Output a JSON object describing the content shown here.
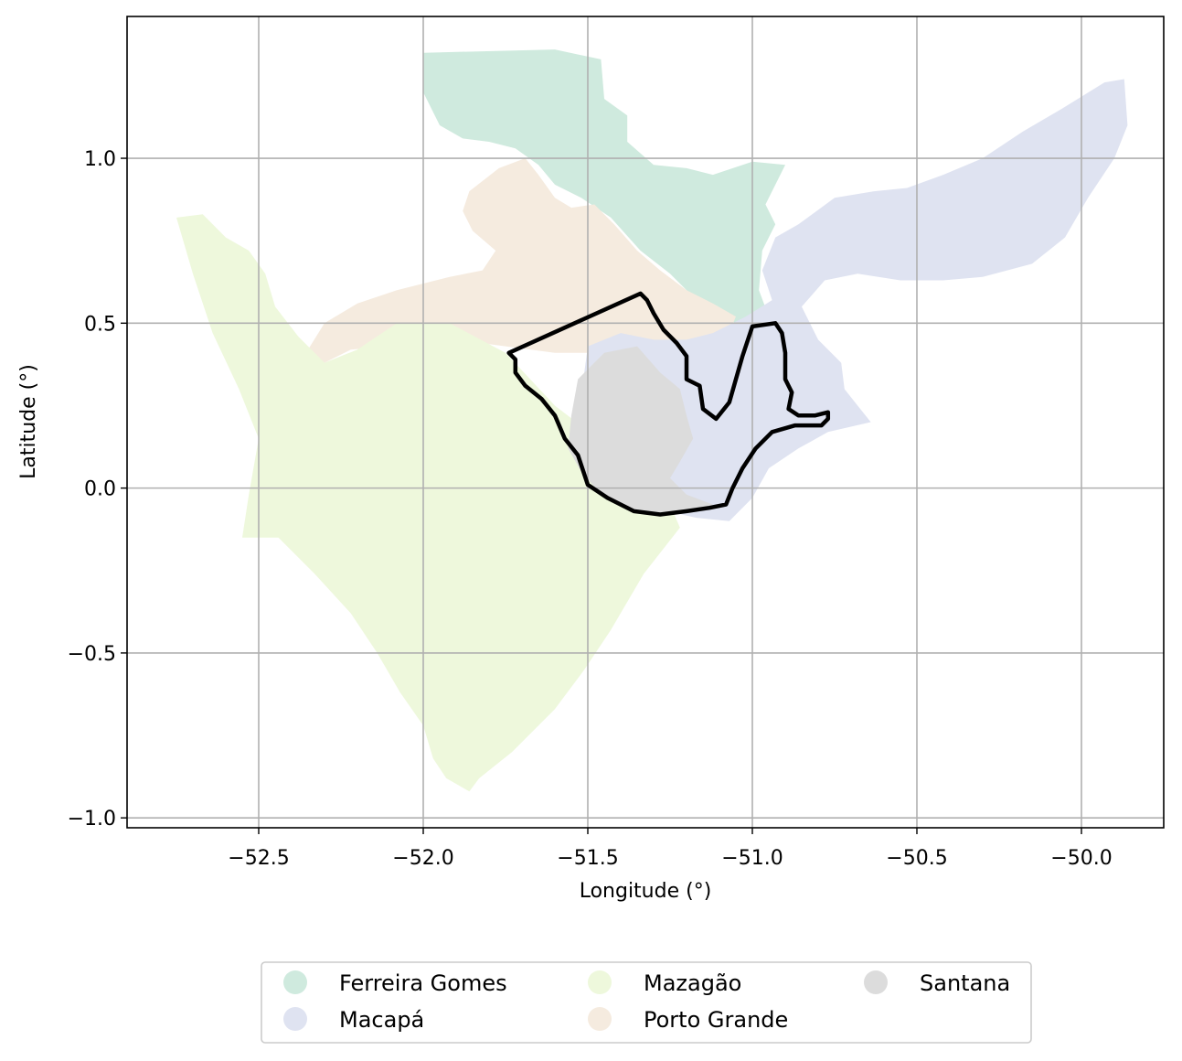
{
  "chart_data": {
    "type": "map",
    "xlabel": "Longitude (°)",
    "ylabel": "Latitude (°)",
    "xlim": [
      -52.9,
      -49.75
    ],
    "ylim": [
      -1.03,
      1.43
    ],
    "x_ticks": [
      -52.5,
      -52.0,
      -51.5,
      -51.0,
      -50.5,
      -50.0
    ],
    "x_tick_labels": [
      "−52.5",
      "−52.0",
      "−51.5",
      "−51.0",
      "−50.5",
      "−50.0"
    ],
    "y_ticks": [
      -1.0,
      -0.5,
      0.0,
      0.5,
      1.0
    ],
    "y_tick_labels": [
      "−1.0",
      "−0.5",
      "0.0",
      "0.5",
      "1.0"
    ],
    "grid": true,
    "legend_position": "bottom-center",
    "legend_columns": 3,
    "regions": [
      {
        "name": "Ferreira Gomes",
        "color": "#cfeade",
        "coords": [
          [
            -52.0,
            1.32
          ],
          [
            -51.6,
            1.33
          ],
          [
            -51.46,
            1.3
          ],
          [
            -51.45,
            1.18
          ],
          [
            -51.38,
            1.13
          ],
          [
            -51.38,
            1.05
          ],
          [
            -51.3,
            0.98
          ],
          [
            -51.2,
            0.97
          ],
          [
            -51.12,
            0.95
          ],
          [
            -51.0,
            0.99
          ],
          [
            -50.9,
            0.98
          ],
          [
            -50.96,
            0.86
          ],
          [
            -50.93,
            0.8
          ],
          [
            -50.97,
            0.72
          ],
          [
            -50.98,
            0.6
          ],
          [
            -50.95,
            0.52
          ],
          [
            -51.05,
            0.5
          ],
          [
            -51.15,
            0.55
          ],
          [
            -51.25,
            0.65
          ],
          [
            -51.34,
            0.72
          ],
          [
            -51.43,
            0.82
          ],
          [
            -51.52,
            0.88
          ],
          [
            -51.6,
            0.92
          ],
          [
            -51.65,
            0.98
          ],
          [
            -51.72,
            1.03
          ],
          [
            -51.8,
            1.05
          ],
          [
            -51.88,
            1.06
          ],
          [
            -51.95,
            1.1
          ],
          [
            -52.0,
            1.2
          ]
        ]
      },
      {
        "name": "Porto Grande",
        "color": "#f5ebdf",
        "coords": [
          [
            -51.86,
            0.9
          ],
          [
            -51.77,
            0.97
          ],
          [
            -51.69,
            1.0
          ],
          [
            -51.65,
            0.95
          ],
          [
            -51.6,
            0.88
          ],
          [
            -51.55,
            0.85
          ],
          [
            -51.48,
            0.86
          ],
          [
            -51.42,
            0.8
          ],
          [
            -51.35,
            0.72
          ],
          [
            -51.28,
            0.66
          ],
          [
            -51.2,
            0.6
          ],
          [
            -51.12,
            0.56
          ],
          [
            -51.05,
            0.52
          ],
          [
            -51.08,
            0.45
          ],
          [
            -51.15,
            0.38
          ],
          [
            -51.35,
            0.36
          ],
          [
            -51.45,
            0.41
          ],
          [
            -51.6,
            0.41
          ],
          [
            -51.75,
            0.43
          ],
          [
            -51.9,
            0.45
          ],
          [
            -52.1,
            0.43
          ],
          [
            -52.22,
            0.42
          ],
          [
            -52.3,
            0.38
          ],
          [
            -52.35,
            0.42
          ],
          [
            -52.3,
            0.5
          ],
          [
            -52.2,
            0.56
          ],
          [
            -52.08,
            0.6
          ],
          [
            -51.92,
            0.64
          ],
          [
            -51.82,
            0.66
          ],
          [
            -51.78,
            0.72
          ],
          [
            -51.85,
            0.78
          ],
          [
            -51.88,
            0.84
          ]
        ]
      },
      {
        "name": "Mazagão",
        "color": "#eef8dc",
        "coords": [
          [
            -52.75,
            0.82
          ],
          [
            -52.67,
            0.83
          ],
          [
            -52.6,
            0.76
          ],
          [
            -52.53,
            0.72
          ],
          [
            -52.48,
            0.65
          ],
          [
            -52.45,
            0.55
          ],
          [
            -52.38,
            0.46
          ],
          [
            -52.3,
            0.38
          ],
          [
            -52.2,
            0.42
          ],
          [
            -52.08,
            0.5
          ],
          [
            -51.92,
            0.5
          ],
          [
            -51.75,
            0.41
          ],
          [
            -51.6,
            0.25
          ],
          [
            -51.47,
            0.15
          ],
          [
            -51.35,
            0.05
          ],
          [
            -51.25,
            -0.05
          ],
          [
            -51.22,
            -0.12
          ],
          [
            -51.33,
            -0.26
          ],
          [
            -51.43,
            -0.43
          ],
          [
            -51.51,
            -0.55
          ],
          [
            -51.6,
            -0.67
          ],
          [
            -51.73,
            -0.8
          ],
          [
            -51.83,
            -0.88
          ],
          [
            -51.86,
            -0.92
          ],
          [
            -51.93,
            -0.88
          ],
          [
            -51.97,
            -0.82
          ],
          [
            -52.0,
            -0.72
          ],
          [
            -52.07,
            -0.62
          ],
          [
            -52.14,
            -0.5
          ],
          [
            -52.22,
            -0.38
          ],
          [
            -52.33,
            -0.26
          ],
          [
            -52.44,
            -0.15
          ],
          [
            -52.55,
            -0.15
          ],
          [
            -52.53,
            -0.02
          ],
          [
            -52.5,
            0.15
          ],
          [
            -52.56,
            0.3
          ],
          [
            -52.64,
            0.47
          ],
          [
            -52.7,
            0.65
          ]
        ]
      },
      {
        "name": "Macapá",
        "color": "#dfe3f1",
        "coords": [
          [
            -51.5,
            0.43
          ],
          [
            -51.4,
            0.47
          ],
          [
            -51.3,
            0.45
          ],
          [
            -51.2,
            0.45
          ],
          [
            -51.12,
            0.47
          ],
          [
            -51.02,
            0.52
          ],
          [
            -50.94,
            0.57
          ],
          [
            -50.97,
            0.66
          ],
          [
            -50.93,
            0.76
          ],
          [
            -50.86,
            0.8
          ],
          [
            -50.75,
            0.88
          ],
          [
            -50.63,
            0.9
          ],
          [
            -50.53,
            0.91
          ],
          [
            -50.42,
            0.95
          ],
          [
            -50.3,
            1.0
          ],
          [
            -50.18,
            1.08
          ],
          [
            -50.06,
            1.15
          ],
          [
            -49.93,
            1.23
          ],
          [
            -49.87,
            1.24
          ],
          [
            -49.86,
            1.1
          ],
          [
            -49.9,
            1.0
          ],
          [
            -49.98,
            0.88
          ],
          [
            -50.05,
            0.76
          ],
          [
            -50.15,
            0.68
          ],
          [
            -50.3,
            0.64
          ],
          [
            -50.42,
            0.63
          ],
          [
            -50.55,
            0.63
          ],
          [
            -50.68,
            0.65
          ],
          [
            -50.78,
            0.63
          ],
          [
            -50.85,
            0.55
          ],
          [
            -50.8,
            0.45
          ],
          [
            -50.73,
            0.38
          ],
          [
            -50.72,
            0.3
          ],
          [
            -50.68,
            0.25
          ],
          [
            -50.64,
            0.2
          ],
          [
            -50.77,
            0.17
          ],
          [
            -50.86,
            0.12
          ],
          [
            -50.95,
            0.06
          ],
          [
            -51.0,
            -0.03
          ],
          [
            -51.07,
            -0.1
          ],
          [
            -51.17,
            -0.09
          ],
          [
            -51.26,
            -0.07
          ],
          [
            -51.35,
            -0.05
          ],
          [
            -51.42,
            0.05
          ],
          [
            -51.48,
            0.15
          ],
          [
            -51.52,
            0.28
          ]
        ]
      },
      {
        "name": "Santana",
        "color": "#dcdcdc",
        "coords": [
          [
            -51.35,
            0.43
          ],
          [
            -51.28,
            0.35
          ],
          [
            -51.22,
            0.3
          ],
          [
            -51.2,
            0.22
          ],
          [
            -51.18,
            0.15
          ],
          [
            -51.22,
            0.08
          ],
          [
            -51.25,
            0.03
          ],
          [
            -51.2,
            -0.02
          ],
          [
            -51.12,
            -0.05
          ],
          [
            -51.18,
            -0.07
          ],
          [
            -51.27,
            -0.08
          ],
          [
            -51.36,
            -0.07
          ],
          [
            -51.45,
            -0.03
          ],
          [
            -51.52,
            0.05
          ],
          [
            -51.56,
            0.12
          ],
          [
            -51.55,
            0.22
          ],
          [
            -51.53,
            0.33
          ],
          [
            -51.45,
            0.41
          ]
        ]
      }
    ],
    "outline": [
      [
        -51.74,
        0.41
      ],
      [
        -51.34,
        0.59
      ],
      [
        -51.32,
        0.57
      ],
      [
        -51.3,
        0.53
      ],
      [
        -51.27,
        0.48
      ],
      [
        -51.23,
        0.44
      ],
      [
        -51.2,
        0.4
      ],
      [
        -51.2,
        0.33
      ],
      [
        -51.16,
        0.31
      ],
      [
        -51.15,
        0.24
      ],
      [
        -51.11,
        0.21
      ],
      [
        -51.07,
        0.26
      ],
      [
        -51.05,
        0.33
      ],
      [
        -51.03,
        0.4
      ],
      [
        -51.0,
        0.49
      ],
      [
        -50.93,
        0.5
      ],
      [
        -50.91,
        0.47
      ],
      [
        -50.9,
        0.41
      ],
      [
        -50.9,
        0.33
      ],
      [
        -50.88,
        0.29
      ],
      [
        -50.89,
        0.24
      ],
      [
        -50.86,
        0.22
      ],
      [
        -50.81,
        0.22
      ],
      [
        -50.77,
        0.23
      ],
      [
        -50.77,
        0.21
      ],
      [
        -50.79,
        0.19
      ],
      [
        -50.87,
        0.19
      ],
      [
        -50.94,
        0.17
      ],
      [
        -50.99,
        0.12
      ],
      [
        -51.03,
        0.06
      ],
      [
        -51.06,
        0.0
      ],
      [
        -51.08,
        -0.05
      ],
      [
        -51.13,
        -0.06
      ],
      [
        -51.2,
        -0.07
      ],
      [
        -51.28,
        -0.08
      ],
      [
        -51.36,
        -0.07
      ],
      [
        -51.44,
        -0.03
      ],
      [
        -51.5,
        0.01
      ],
      [
        -51.53,
        0.1
      ],
      [
        -51.57,
        0.15
      ],
      [
        -51.6,
        0.22
      ],
      [
        -51.64,
        0.27
      ],
      [
        -51.69,
        0.31
      ],
      [
        -51.72,
        0.35
      ],
      [
        -51.72,
        0.39
      ]
    ]
  },
  "legend": {
    "items": [
      {
        "label": "Ferreira Gomes",
        "color": "#cfeade"
      },
      {
        "label": "Macapá",
        "color": "#dfe3f1"
      },
      {
        "label": "Mazagão",
        "color": "#eef8dc"
      },
      {
        "label": "Porto Grande",
        "color": "#f5ebdf"
      },
      {
        "label": "Santana",
        "color": "#dcdcdc"
      }
    ]
  }
}
